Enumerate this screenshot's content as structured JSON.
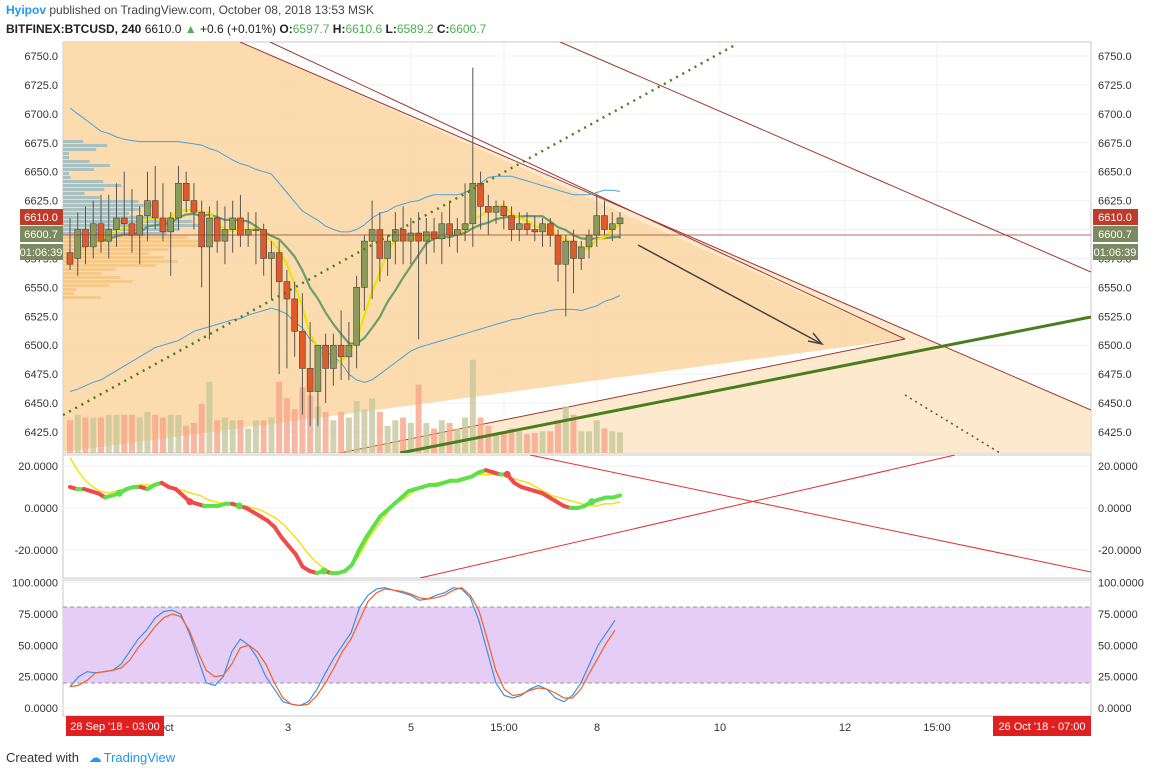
{
  "header": {
    "author": "Hyipov",
    "published_text": "published on TradingView.com, October 08, 2018 13:53 MSK",
    "symbol": "BITFINEX:BTCUSD, 240",
    "last": "6610.0",
    "change": "+0.6 (+0.01%)",
    "o_label": "O:",
    "o": "6597.7",
    "h_label": "H:",
    "h": "6610.6",
    "l_label": "L:",
    "l": "6589.2",
    "c_label": "C:",
    "c": "6600.7"
  },
  "price_axis": {
    "ticks": [
      "6750.0",
      "6725.0",
      "6700.0",
      "6675.0",
      "6650.0",
      "6625.0",
      "6600.0",
      "6575.0",
      "6550.0",
      "6525.0",
      "6500.0",
      "6475.0",
      "6450.0",
      "6425.0"
    ],
    "badge_high": "6610.0",
    "badge_last": "6600.7",
    "badge_timer": "01:06:39"
  },
  "indicator1_axis": {
    "ticks": [
      "20.0000",
      "0.0000",
      "-20.0000"
    ]
  },
  "indicator2_axis": {
    "ticks": [
      "100.0000",
      "75.0000",
      "50.0000",
      "25.0000",
      "0.0000"
    ]
  },
  "time_axis": {
    "ticks": [
      "Oct",
      "3",
      "5",
      "15:00",
      "8",
      "10",
      "12",
      "15:00"
    ],
    "range_start": "28 Sep '18 - 03:00",
    "range_end": "26 Oct '18 - 07:00"
  },
  "footer": {
    "created_with": "Created with",
    "brand": "TradingView"
  },
  "colors": {
    "up": "#8a9a5b",
    "down": "#e05a2a",
    "triangle_fill": "#fbd6a0",
    "bb": "#4a9fd8",
    "ma_yellow": "#f2e200",
    "ma_green": "#6b9d6b",
    "trend_green": "#4a7d1e",
    "trend_red": "#a0342c",
    "stoch_band": "#e3c8f5"
  },
  "chart_data": [
    {
      "type": "candlestick",
      "title": "BITFINEX:BTCUSD, 240",
      "ylim": [
        6415,
        6760
      ],
      "candles": [
        {
          "o": 6580,
          "h": 6610,
          "l": 6565,
          "c": 6570
        },
        {
          "o": 6575,
          "h": 6615,
          "l": 6560,
          "c": 6600
        },
        {
          "o": 6600,
          "h": 6620,
          "l": 6570,
          "c": 6585
        },
        {
          "o": 6585,
          "h": 6625,
          "l": 6575,
          "c": 6605
        },
        {
          "o": 6605,
          "h": 6630,
          "l": 6580,
          "c": 6590
        },
        {
          "o": 6590,
          "h": 6630,
          "l": 6575,
          "c": 6600
        },
        {
          "o": 6600,
          "h": 6640,
          "l": 6585,
          "c": 6610
        },
        {
          "o": 6610,
          "h": 6650,
          "l": 6595,
          "c": 6605
        },
        {
          "o": 6605,
          "h": 6635,
          "l": 6580,
          "c": 6595
        },
        {
          "o": 6595,
          "h": 6620,
          "l": 6570,
          "c": 6612
        },
        {
          "o": 6612,
          "h": 6650,
          "l": 6590,
          "c": 6625
        },
        {
          "o": 6625,
          "h": 6655,
          "l": 6600,
          "c": 6610
        },
        {
          "o": 6610,
          "h": 6640,
          "l": 6590,
          "c": 6598
        },
        {
          "o": 6598,
          "h": 6615,
          "l": 6560,
          "c": 6610
        },
        {
          "o": 6610,
          "h": 6655,
          "l": 6600,
          "c": 6640
        },
        {
          "o": 6640,
          "h": 6650,
          "l": 6615,
          "c": 6625
        },
        {
          "o": 6625,
          "h": 6640,
          "l": 6600,
          "c": 6615
        },
        {
          "o": 6615,
          "h": 6625,
          "l": 6550,
          "c": 6585
        },
        {
          "o": 6585,
          "h": 6620,
          "l": 6505,
          "c": 6610
        },
        {
          "o": 6610,
          "h": 6625,
          "l": 6580,
          "c": 6590
        },
        {
          "o": 6590,
          "h": 6620,
          "l": 6570,
          "c": 6600
        },
        {
          "o": 6600,
          "h": 6625,
          "l": 6580,
          "c": 6610
        },
        {
          "o": 6610,
          "h": 6630,
          "l": 6585,
          "c": 6595
        },
        {
          "o": 6595,
          "h": 6615,
          "l": 6585,
          "c": 6600
        },
        {
          "o": 6600,
          "h": 6615,
          "l": 6570,
          "c": 6600
        },
        {
          "o": 6600,
          "h": 6605,
          "l": 6560,
          "c": 6575
        },
        {
          "o": 6575,
          "h": 6590,
          "l": 6540,
          "c": 6580
        },
        {
          "o": 6580,
          "h": 6590,
          "l": 6475,
          "c": 6555
        },
        {
          "o": 6555,
          "h": 6565,
          "l": 6480,
          "c": 6540
        },
        {
          "o": 6540,
          "h": 6555,
          "l": 6490,
          "c": 6512
        },
        {
          "o": 6512,
          "h": 6545,
          "l": 6440,
          "c": 6480
        },
        {
          "o": 6480,
          "h": 6520,
          "l": 6430,
          "c": 6460
        },
        {
          "o": 6460,
          "h": 6500,
          "l": 6430,
          "c": 6500
        },
        {
          "o": 6500,
          "h": 6510,
          "l": 6450,
          "c": 6480
        },
        {
          "o": 6480,
          "h": 6510,
          "l": 6465,
          "c": 6500
        },
        {
          "o": 6500,
          "h": 6530,
          "l": 6470,
          "c": 6490
        },
        {
          "o": 6490,
          "h": 6520,
          "l": 6470,
          "c": 6500
        },
        {
          "o": 6500,
          "h": 6560,
          "l": 6480,
          "c": 6550
        },
        {
          "o": 6550,
          "h": 6595,
          "l": 6530,
          "c": 6590
        },
        {
          "o": 6590,
          "h": 6625,
          "l": 6540,
          "c": 6600
        },
        {
          "o": 6600,
          "h": 6615,
          "l": 6555,
          "c": 6575
        },
        {
          "o": 6575,
          "h": 6595,
          "l": 6560,
          "c": 6590
        },
        {
          "o": 6590,
          "h": 6615,
          "l": 6570,
          "c": 6600
        },
        {
          "o": 6600,
          "h": 6620,
          "l": 6570,
          "c": 6590
        },
        {
          "o": 6590,
          "h": 6610,
          "l": 6570,
          "c": 6597
        },
        {
          "o": 6597,
          "h": 6615,
          "l": 6505,
          "c": 6590
        },
        {
          "o": 6590,
          "h": 6610,
          "l": 6570,
          "c": 6598
        },
        {
          "o": 6598,
          "h": 6610,
          "l": 6580,
          "c": 6592
        },
        {
          "o": 6592,
          "h": 6615,
          "l": 6570,
          "c": 6605
        },
        {
          "o": 6605,
          "h": 6625,
          "l": 6585,
          "c": 6595
        },
        {
          "o": 6595,
          "h": 6610,
          "l": 6580,
          "c": 6600
        },
        {
          "o": 6600,
          "h": 6640,
          "l": 6590,
          "c": 6605
        },
        {
          "o": 6605,
          "h": 6740,
          "l": 6585,
          "c": 6640
        },
        {
          "o": 6640,
          "h": 6650,
          "l": 6600,
          "c": 6620
        },
        {
          "o": 6620,
          "h": 6630,
          "l": 6595,
          "c": 6615
        },
        {
          "o": 6615,
          "h": 6625,
          "l": 6605,
          "c": 6620
        },
        {
          "o": 6620,
          "h": 6625,
          "l": 6600,
          "c": 6612
        },
        {
          "o": 6612,
          "h": 6620,
          "l": 6590,
          "c": 6600
        },
        {
          "o": 6600,
          "h": 6615,
          "l": 6590,
          "c": 6605
        },
        {
          "o": 6605,
          "h": 6615,
          "l": 6595,
          "c": 6600
        },
        {
          "o": 6600,
          "h": 6612,
          "l": 6590,
          "c": 6598
        },
        {
          "o": 6598,
          "h": 6610,
          "l": 6585,
          "c": 6605
        },
        {
          "o": 6605,
          "h": 6610,
          "l": 6585,
          "c": 6595
        },
        {
          "o": 6595,
          "h": 6600,
          "l": 6555,
          "c": 6570
        },
        {
          "o": 6570,
          "h": 6595,
          "l": 6525,
          "c": 6590
        },
        {
          "o": 6590,
          "h": 6600,
          "l": 6545,
          "c": 6575
        },
        {
          "o": 6575,
          "h": 6590,
          "l": 6565,
          "c": 6585
        },
        {
          "o": 6585,
          "h": 6600,
          "l": 6575,
          "c": 6595
        },
        {
          "o": 6595,
          "h": 6630,
          "l": 6585,
          "c": 6612
        },
        {
          "o": 6612,
          "h": 6625,
          "l": 6595,
          "c": 6600
        },
        {
          "o": 6600,
          "h": 6615,
          "l": 6590,
          "c": 6605
        },
        {
          "o": 6605,
          "h": 6615,
          "l": 6592,
          "c": 6610
        }
      ],
      "bollinger_upper": [
        6705,
        6700,
        6695,
        6690,
        6685,
        6683,
        6680,
        6678,
        6677,
        6676,
        6676,
        6676,
        6676,
        6676,
        6676,
        6675,
        6674,
        6673,
        6670,
        6668,
        6664,
        6660,
        6657,
        6655,
        6652,
        6650,
        6648,
        6640,
        6632,
        6624,
        6616,
        6612,
        6608,
        6603,
        6600,
        6598,
        6598,
        6600,
        6604,
        6610,
        6614,
        6616,
        6620,
        6622,
        6624,
        6625,
        6628,
        6630,
        6630,
        6630,
        6630,
        6632,
        6636,
        6640,
        6645,
        6646,
        6646,
        6646,
        6644,
        6642,
        6640,
        6638,
        6636,
        6634,
        6632,
        6630,
        6630,
        6630,
        6632,
        6634,
        6634,
        6633
      ],
      "bollinger_lower": [
        6460,
        6462,
        6465,
        6468,
        6470,
        6474,
        6478,
        6482,
        6486,
        6490,
        6494,
        6498,
        6500,
        6502,
        6504,
        6508,
        6512,
        6514,
        6516,
        6518,
        6520,
        6522,
        6523,
        6526,
        6528,
        6530,
        6532,
        6530,
        6527,
        6520,
        6515,
        6505,
        6500,
        6495,
        6490,
        6485,
        6475,
        6470,
        6468,
        6470,
        6475,
        6480,
        6485,
        6490,
        6495,
        6498,
        6500,
        6502,
        6504,
        6506,
        6508,
        6510,
        6512,
        6514,
        6516,
        6518,
        6520,
        6522,
        6523,
        6525,
        6527,
        6528,
        6530,
        6531,
        6531,
        6531,
        6530,
        6532,
        6534,
        6538,
        6540,
        6543
      ]
    },
    {
      "type": "line",
      "title": "",
      "ylim": [
        -30,
        25
      ],
      "series": [
        {
          "values": [
            10,
            9,
            9,
            8,
            7,
            5,
            6,
            7,
            9,
            10,
            10,
            9,
            11,
            12,
            10,
            9,
            6,
            3,
            2,
            1,
            1,
            1,
            2,
            2,
            1,
            0,
            -2,
            -4,
            -6,
            -9,
            -14,
            -18,
            -22,
            -28,
            -30,
            -31,
            -30,
            -31,
            -31,
            -30,
            -27,
            -20,
            -14,
            -9,
            -4,
            -1,
            2,
            5,
            8,
            9,
            10,
            11,
            11,
            12,
            13,
            13,
            14,
            15,
            17,
            18,
            17,
            16,
            16,
            12,
            10,
            9,
            8,
            7,
            5,
            3,
            1,
            0,
            0,
            1,
            3,
            4,
            5,
            5,
            6
          ]
        },
        {
          "values": [
            24,
            18,
            13,
            10,
            8,
            7,
            8,
            9,
            10,
            11,
            11,
            11,
            11,
            10,
            9,
            8,
            7,
            6,
            4,
            3,
            2,
            2,
            1,
            1,
            0,
            -1,
            -3,
            -5,
            -8,
            -12,
            -16,
            -21,
            -25,
            -28,
            -30,
            -31,
            -30,
            -27,
            -22,
            -15,
            -10,
            -5,
            0,
            3,
            5,
            8,
            10,
            11,
            12,
            12,
            13,
            14,
            15,
            16,
            16,
            16,
            16,
            15,
            14,
            13,
            12,
            10,
            8,
            6,
            5,
            4,
            3,
            2,
            1,
            1,
            2,
            2,
            3
          ]
        }
      ]
    },
    {
      "type": "line",
      "title": "",
      "ylim": [
        -5,
        105
      ],
      "series": [
        {
          "values": [
            17,
            25,
            29,
            28,
            29,
            30,
            35,
            45,
            55,
            62,
            72,
            77,
            78,
            75,
            60,
            40,
            20,
            18,
            25,
            45,
            55,
            50,
            40,
            25,
            15,
            5,
            3,
            2,
            5,
            15,
            28,
            40,
            50,
            60,
            80,
            90,
            95,
            96,
            94,
            92,
            90,
            86,
            87,
            90,
            92,
            96,
            95,
            88,
            70,
            45,
            20,
            10,
            8,
            10,
            15,
            18,
            15,
            8,
            5,
            10,
            20,
            35,
            50,
            60,
            70
          ]
        },
        {
          "values": [
            17,
            18,
            22,
            28,
            29,
            30,
            32,
            38,
            48,
            56,
            65,
            72,
            75,
            73,
            62,
            45,
            30,
            25,
            26,
            35,
            48,
            50,
            45,
            35,
            20,
            8,
            3,
            2,
            3,
            10,
            20,
            32,
            45,
            55,
            70,
            85,
            92,
            95,
            94,
            93,
            91,
            88,
            87,
            88,
            90,
            94,
            96,
            90,
            78,
            55,
            30,
            15,
            10,
            11,
            14,
            16,
            15,
            12,
            8,
            8,
            15,
            28,
            40,
            52,
            62
          ]
        }
      ]
    }
  ]
}
